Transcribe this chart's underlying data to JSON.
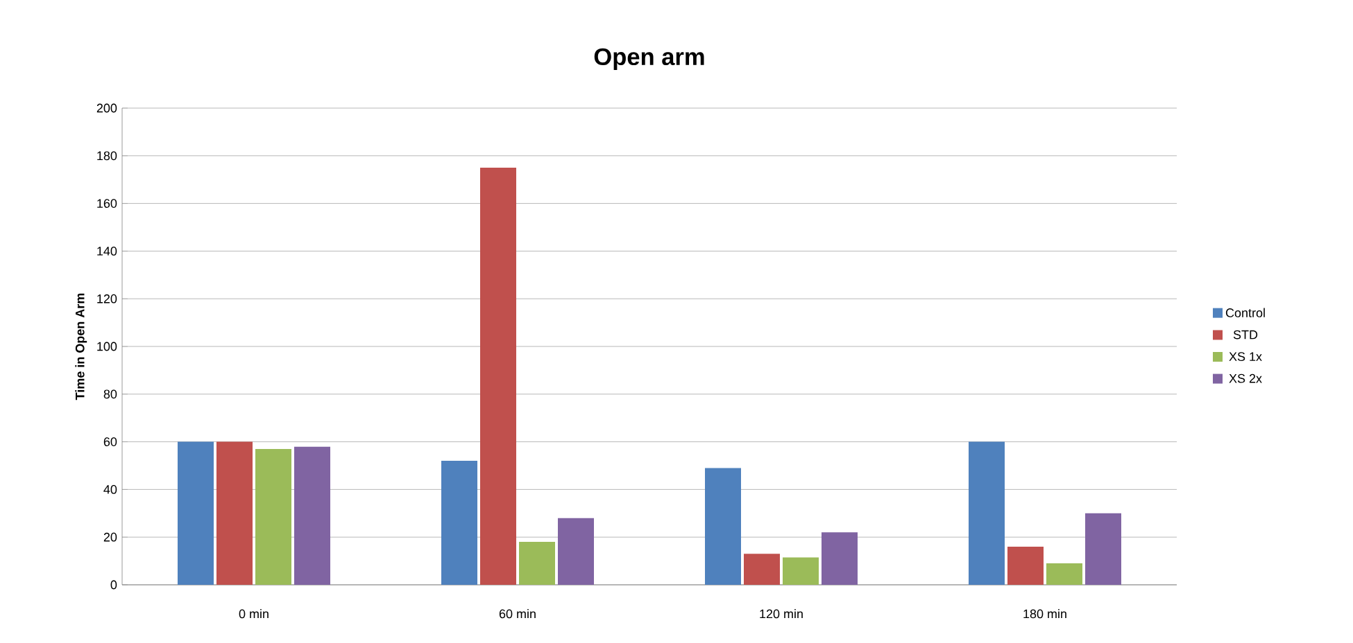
{
  "chart_data": {
    "type": "bar",
    "title": "Open arm",
    "ylabel": "Time in Open Arm",
    "categories": [
      "0 min",
      "60 min",
      "120 min",
      "180 min"
    ],
    "series": [
      {
        "name": "Control",
        "color": "#4f81bd",
        "values": [
          60,
          52,
          49,
          60
        ]
      },
      {
        "name": "STD",
        "color": "#c0504d",
        "values": [
          60,
          175,
          13,
          16
        ]
      },
      {
        "name": "XS 1x",
        "color": "#9bbb59",
        "values": [
          57,
          18,
          11.5,
          9
        ]
      },
      {
        "name": "XS 2x",
        "color": "#8064a2",
        "values": [
          58,
          28,
          22,
          30
        ]
      }
    ],
    "ylim": [
      0,
      200
    ],
    "yticks": [
      0,
      20,
      40,
      60,
      80,
      100,
      120,
      140,
      160,
      180,
      200
    ],
    "grid": "y",
    "legend": "right"
  }
}
